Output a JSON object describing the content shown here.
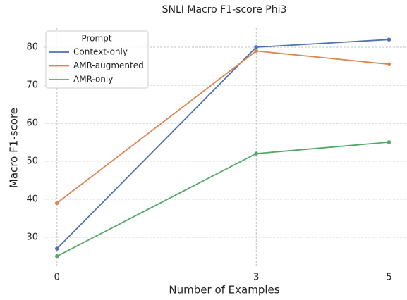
{
  "chart_data": {
    "type": "line",
    "title": "SNLI Macro F1-score Phi3",
    "x_label": "Number of Examples",
    "y_label": "Macro F1-score",
    "x": [
      0,
      3,
      5
    ],
    "series": [
      {
        "name": "Context-only",
        "color": "#4c72b0",
        "values": [
          27,
          80,
          82
        ]
      },
      {
        "name": "AMR-augmented",
        "color": "#dd8452",
        "values": [
          39,
          79,
          75.5
        ]
      },
      {
        "name": "AMR-only",
        "color": "#55a868",
        "values": [
          25,
          52,
          55
        ]
      }
    ],
    "legend_title": "Prompt",
    "legend": "upper left",
    "xlim": [
      -0.2,
      5.25
    ],
    "xticks": [
      0,
      3,
      5
    ],
    "ylim": [
      22,
      85
    ],
    "yticks": [
      30,
      40,
      50,
      60,
      70,
      80
    ],
    "grid": true
  }
}
